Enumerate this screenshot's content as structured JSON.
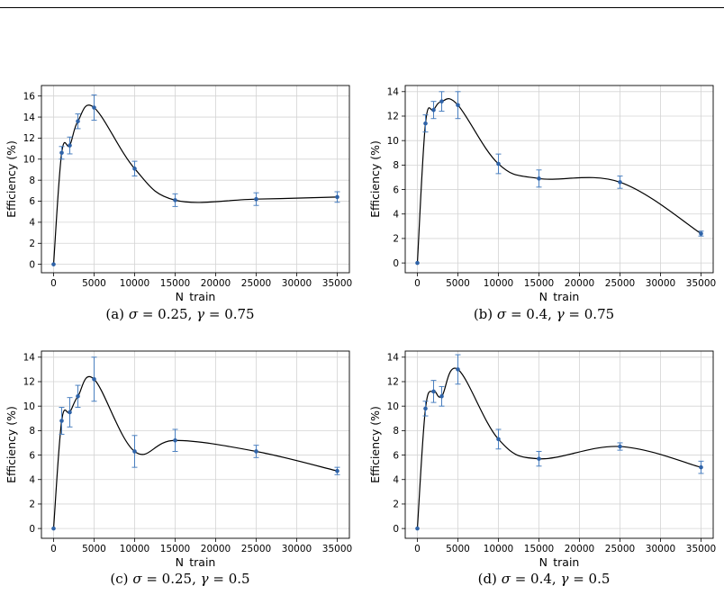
{
  "chart_data": [
    {
      "type": "line",
      "caption": {
        "letter": "(a)",
        "sigma": "0.25",
        "gamma": "0.75"
      },
      "xlabel": "N_train",
      "ylabel": "Efficiency (%)",
      "xlim": [
        -1500,
        36500
      ],
      "ylim": [
        -0.8,
        17
      ],
      "xticks": [
        0,
        5000,
        10000,
        15000,
        20000,
        25000,
        30000,
        35000
      ],
      "yticks": [
        0,
        2,
        4,
        6,
        8,
        10,
        12,
        14,
        16
      ],
      "grid": true,
      "x": [
        0,
        1000,
        2000,
        3000,
        5000,
        10000,
        15000,
        25000,
        35000
      ],
      "y": [
        0,
        10.6,
        11.3,
        13.6,
        14.9,
        9.1,
        6.1,
        6.2,
        6.4
      ],
      "err": [
        0,
        0.6,
        0.8,
        0.7,
        1.2,
        0.7,
        0.6,
        0.6,
        0.5
      ]
    },
    {
      "type": "line",
      "caption": {
        "letter": "(b)",
        "sigma": "0.4",
        "gamma": "0.75"
      },
      "xlabel": "N_train",
      "ylabel": "Efficiency (%)",
      "xlim": [
        -1500,
        36500
      ],
      "ylim": [
        -0.8,
        14.5
      ],
      "xticks": [
        0,
        5000,
        10000,
        15000,
        20000,
        25000,
        30000,
        35000
      ],
      "yticks": [
        0,
        2,
        4,
        6,
        8,
        10,
        12,
        14
      ],
      "grid": true,
      "x": [
        0,
        1000,
        2000,
        3000,
        5000,
        10000,
        15000,
        25000,
        35000
      ],
      "y": [
        0,
        11.4,
        12.5,
        13.2,
        12.9,
        8.1,
        6.9,
        6.6,
        2.4
      ],
      "err": [
        0,
        0.7,
        0.7,
        0.8,
        1.1,
        0.8,
        0.7,
        0.5,
        0.2
      ]
    },
    {
      "type": "line",
      "caption": {
        "letter": "(c)",
        "sigma": "0.25",
        "gamma": "0.5"
      },
      "xlabel": "N_train",
      "ylabel": "Efficiency (%)",
      "xlim": [
        -1500,
        36500
      ],
      "ylim": [
        -0.8,
        14.5
      ],
      "xticks": [
        0,
        5000,
        10000,
        15000,
        20000,
        25000,
        30000,
        35000
      ],
      "yticks": [
        0,
        2,
        4,
        6,
        8,
        10,
        12,
        14
      ],
      "grid": true,
      "x": [
        0,
        1000,
        2000,
        3000,
        5000,
        10000,
        15000,
        25000,
        35000
      ],
      "y": [
        0,
        8.8,
        9.5,
        10.8,
        12.2,
        6.3,
        7.2,
        6.3,
        4.7
      ],
      "err": [
        0,
        1.1,
        1.2,
        0.9,
        1.8,
        1.3,
        0.9,
        0.5,
        0.3
      ]
    },
    {
      "type": "line",
      "caption": {
        "letter": "(d)",
        "sigma": "0.4",
        "gamma": "0.5"
      },
      "xlabel": "N_train",
      "ylabel": "Efficiency (%)",
      "xlim": [
        -1500,
        36500
      ],
      "ylim": [
        -0.8,
        14.5
      ],
      "xticks": [
        0,
        5000,
        10000,
        15000,
        20000,
        25000,
        30000,
        35000
      ],
      "yticks": [
        0,
        2,
        4,
        6,
        8,
        10,
        12,
        14
      ],
      "grid": true,
      "x": [
        0,
        1000,
        2000,
        3000,
        5000,
        10000,
        15000,
        25000,
        35000
      ],
      "y": [
        0,
        9.8,
        11.2,
        10.8,
        13.0,
        7.3,
        5.7,
        6.7,
        5.0
      ],
      "err": [
        0,
        0.6,
        0.9,
        0.8,
        1.2,
        0.8,
        0.6,
        0.3,
        0.5
      ]
    }
  ]
}
